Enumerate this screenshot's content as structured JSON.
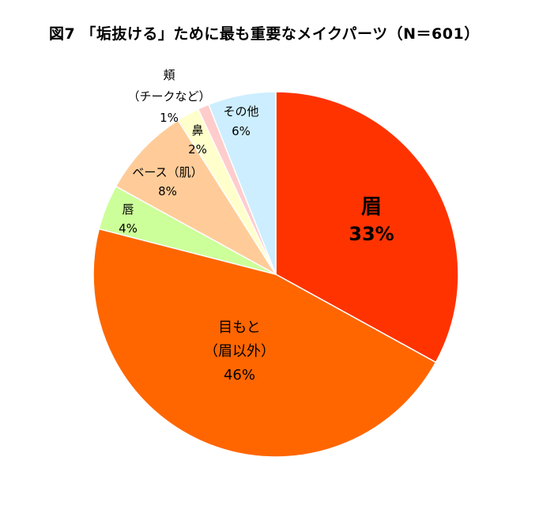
{
  "chart_data": {
    "type": "pie",
    "title": "図7 「垢抜ける」ために最も重要なメイクパーツ（N＝601）",
    "start_angle_deg": 0,
    "direction": "clockwise",
    "slices": [
      {
        "key": "mayu",
        "label_lines": [
          "眉"
        ],
        "percent_label": "33%",
        "value": 33,
        "color": "#FF3300"
      },
      {
        "key": "mimoto",
        "label_lines": [
          "目もと",
          "（眉以外）"
        ],
        "percent_label": "46%",
        "value": 46,
        "color": "#FF6600"
      },
      {
        "key": "kuchibiru",
        "label_lines": [
          "唇"
        ],
        "percent_label": "4%",
        "value": 4,
        "color": "#CCFF99"
      },
      {
        "key": "base",
        "label_lines": [
          "ベース（肌）"
        ],
        "percent_label": "8%",
        "value": 8,
        "color": "#FFCC99"
      },
      {
        "key": "hana",
        "label_lines": [
          "鼻"
        ],
        "percent_label": "2%",
        "value": 2,
        "color": "#FFFFCC"
      },
      {
        "key": "hoho",
        "label_lines": [
          "頬",
          "（チークなど）"
        ],
        "percent_label": "1%",
        "value": 1,
        "color": "#FFCCCC"
      },
      {
        "key": "sonota",
        "label_lines": [
          "その他"
        ],
        "percent_label": "6%",
        "value": 6,
        "color": "#CCEEFF"
      }
    ]
  }
}
